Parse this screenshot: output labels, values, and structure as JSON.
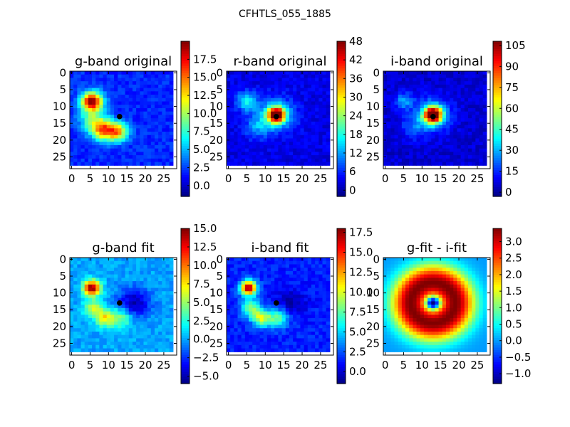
{
  "figure": {
    "title": "CFHTLS_055_1885",
    "colormap": "jet",
    "background": "#ffffff",
    "marker_color": "#000000"
  },
  "chart_data": [
    {
      "type": "heatmap",
      "title": "g-band original",
      "xticks": [
        0,
        5,
        10,
        15,
        20,
        25
      ],
      "yticks": [
        0,
        5,
        10,
        15,
        20,
        25
      ],
      "xlim": [
        -0.5,
        28.5
      ],
      "ylim": [
        28.5,
        -0.5
      ],
      "grid": false,
      "image_extent": [
        -0.5,
        27.5
      ],
      "marker": {
        "x": 13,
        "y": 13
      },
      "background_level": 2,
      "sources": [
        {
          "x": 5.5,
          "y": 8.5,
          "peak": 18,
          "sigma": 2.0
        },
        {
          "x": 8.5,
          "y": 17,
          "peak": 12,
          "sigma": 2.2
        },
        {
          "x": 12.5,
          "y": 17.5,
          "peak": 11,
          "sigma": 2.0
        },
        {
          "x": 5.5,
          "y": 14,
          "peak": 6,
          "sigma": 2.5
        }
      ],
      "colorbar": {
        "min": -1.5,
        "max": 20,
        "ticks": [
          "0.0",
          "2.5",
          "5.0",
          "7.5",
          "10.0",
          "12.5",
          "15.0",
          "17.5"
        ],
        "tick_values": [
          0,
          2.5,
          5,
          7.5,
          10,
          12.5,
          15,
          17.5
        ]
      }
    },
    {
      "type": "heatmap",
      "title": "r-band original",
      "xticks": [
        0,
        5,
        10,
        15,
        20,
        25
      ],
      "yticks": [
        0,
        5,
        10,
        15,
        20,
        25
      ],
      "xlim": [
        -0.5,
        28.5
      ],
      "ylim": [
        28.5,
        -0.5
      ],
      "grid": false,
      "image_extent": [
        -0.5,
        27.5
      ],
      "marker": {
        "x": 13,
        "y": 13
      },
      "background_level": 3,
      "sources": [
        {
          "x": 13,
          "y": 12.5,
          "peak": 45,
          "sigma": 1.6
        },
        {
          "x": 13,
          "y": 12.5,
          "peak": 12,
          "sigma": 3.5
        },
        {
          "x": 5,
          "y": 8.5,
          "peak": 14,
          "sigma": 2.0
        },
        {
          "x": 8,
          "y": 16,
          "peak": 8,
          "sigma": 2.5
        }
      ],
      "colorbar": {
        "min": -2,
        "max": 48,
        "ticks": [
          "0",
          "6",
          "12",
          "18",
          "24",
          "30",
          "36",
          "42",
          "48"
        ],
        "tick_values": [
          0,
          6,
          12,
          18,
          24,
          30,
          36,
          42,
          48
        ]
      }
    },
    {
      "type": "heatmap",
      "title": "i-band original",
      "xticks": [
        0,
        5,
        10,
        15,
        20,
        25
      ],
      "yticks": [
        0,
        5,
        10,
        15,
        20,
        25
      ],
      "xlim": [
        -0.5,
        28.5
      ],
      "ylim": [
        28.5,
        -0.5
      ],
      "grid": false,
      "image_extent": [
        -0.5,
        27.5
      ],
      "marker": {
        "x": 13,
        "y": 13
      },
      "background_level": 6,
      "sources": [
        {
          "x": 13,
          "y": 12.5,
          "peak": 105,
          "sigma": 1.7
        },
        {
          "x": 13,
          "y": 12.5,
          "peak": 25,
          "sigma": 3.5
        },
        {
          "x": 5,
          "y": 8.5,
          "peak": 22,
          "sigma": 1.8
        },
        {
          "x": 8,
          "y": 16,
          "peak": 14,
          "sigma": 2.5
        }
      ],
      "colorbar": {
        "min": -3,
        "max": 108,
        "ticks": [
          "0",
          "15",
          "30",
          "45",
          "60",
          "75",
          "90",
          "105"
        ],
        "tick_values": [
          0,
          15,
          30,
          45,
          60,
          75,
          90,
          105
        ]
      }
    },
    {
      "type": "heatmap",
      "title": "g-band fit",
      "xticks": [
        0,
        5,
        10,
        15,
        20,
        25
      ],
      "yticks": [
        0,
        5,
        10,
        15,
        20,
        25
      ],
      "xlim": [
        -0.5,
        28.5
      ],
      "ylim": [
        28.5,
        -0.5
      ],
      "grid": false,
      "image_extent": [
        -0.5,
        27.5
      ],
      "marker": {
        "x": 13,
        "y": 13
      },
      "background_level": 0,
      "sources": [
        {
          "x": 5.5,
          "y": 8.5,
          "peak": 15,
          "sigma": 1.6
        },
        {
          "x": 9,
          "y": 17.5,
          "peak": 7,
          "sigma": 1.8
        },
        {
          "x": 6,
          "y": 14.5,
          "peak": 6,
          "sigma": 1.8
        },
        {
          "x": 13.5,
          "y": 17.5,
          "peak": 5,
          "sigma": 2.0
        },
        {
          "x": 17,
          "y": 13,
          "peak": -5,
          "sigma": 3.0
        }
      ],
      "colorbar": {
        "min": -6,
        "max": 15,
        "ticks": [
          "−5.0",
          "−2.5",
          "0.0",
          "2.5",
          "5.0",
          "7.5",
          "10.0",
          "12.5",
          "15.0"
        ],
        "tick_values": [
          -5,
          -2.5,
          0,
          2.5,
          5,
          7.5,
          10,
          12.5,
          15
        ]
      }
    },
    {
      "type": "heatmap",
      "title": "i-band fit",
      "xticks": [
        0,
        5,
        10,
        15,
        20,
        25
      ],
      "yticks": [
        0,
        5,
        10,
        15,
        20,
        25
      ],
      "xlim": [
        -0.5,
        28.5
      ],
      "ylim": [
        28.5,
        -0.5
      ],
      "grid": false,
      "image_extent": [
        -0.5,
        27.5
      ],
      "marker": {
        "x": 13,
        "y": 13
      },
      "background_level": 1.5,
      "sources": [
        {
          "x": 5.5,
          "y": 8.5,
          "peak": 17,
          "sigma": 1.5
        },
        {
          "x": 9,
          "y": 17.5,
          "peak": 8,
          "sigma": 1.8
        },
        {
          "x": 6,
          "y": 14.5,
          "peak": 7,
          "sigma": 1.8
        },
        {
          "x": 13.5,
          "y": 17.5,
          "peak": 6,
          "sigma": 2.0
        },
        {
          "x": 17,
          "y": 13,
          "peak": -2,
          "sigma": 3.0
        }
      ],
      "colorbar": {
        "min": -1.5,
        "max": 18,
        "ticks": [
          "0.0",
          "2.5",
          "5.0",
          "7.5",
          "10.0",
          "12.5",
          "15.0",
          "17.5"
        ],
        "tick_values": [
          0,
          2.5,
          5,
          7.5,
          10,
          12.5,
          15,
          17.5
        ]
      }
    },
    {
      "type": "heatmap",
      "title": "g-fit - i-fit",
      "xticks": [
        0,
        5,
        10,
        15,
        20,
        25
      ],
      "yticks": [
        0,
        5,
        10,
        15,
        20,
        25
      ],
      "xlim": [
        -0.5,
        28.5
      ],
      "ylim": [
        28.5,
        -0.5
      ],
      "grid": false,
      "image_extent": [
        -0.5,
        27.5
      ],
      "marker": null,
      "ring": {
        "x": 13,
        "y": 13,
        "peak_radius": 6,
        "width": 3.8,
        "peak": 3.4,
        "floor": 0.0,
        "center_value": -1.3,
        "center_sigma": 1.2
      },
      "colorbar": {
        "min": -1.3,
        "max": 3.4,
        "ticks": [
          "−1.0",
          "−0.5",
          "0.0",
          "0.5",
          "1.0",
          "1.5",
          "2.0",
          "2.5",
          "3.0"
        ],
        "tick_values": [
          -1,
          -0.5,
          0,
          0.5,
          1,
          1.5,
          2,
          2.5,
          3
        ]
      }
    }
  ]
}
